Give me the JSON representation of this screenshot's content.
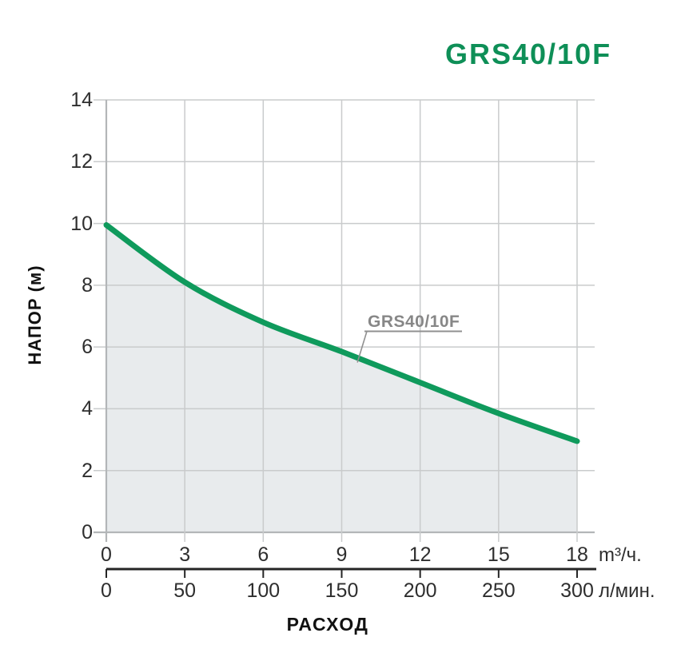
{
  "title": "GRS40/10F",
  "colors": {
    "accent": "#0e8f57",
    "curve": "#0f9a5c",
    "fill": "#e8ebed",
    "grid": "#c9cbcc",
    "axis": "#b3b6b8",
    "scale_line": "#252525",
    "tick_text": "#2e2e2e",
    "annotation_text": "#878787",
    "leader": "#909090"
  },
  "chart_data": {
    "type": "area",
    "title": "GRS40/10F",
    "ylabel": "НАПОР (м)",
    "xlabel": "РАСХОД",
    "ylim": [
      0,
      14
    ],
    "xlim": [
      0,
      18
    ],
    "grid": true,
    "legend": "none",
    "y_ticks": [
      0,
      2,
      4,
      6,
      8,
      10,
      12,
      14
    ],
    "x_axis_primary": {
      "ticks": [
        0,
        3,
        6,
        9,
        12,
        15,
        18
      ],
      "max": 18,
      "unit": "m³/ч."
    },
    "x_axis_secondary": {
      "ticks": [
        0,
        50,
        100,
        150,
        200,
        250,
        300
      ],
      "max": 300,
      "unit": "л/мин."
    },
    "series": [
      {
        "name": "GRS40/10F",
        "x": [
          0,
          3,
          6,
          9,
          12,
          15,
          18
        ],
        "y": [
          9.95,
          8.1,
          6.8,
          5.85,
          4.85,
          3.85,
          2.95
        ]
      }
    ],
    "annotation": {
      "label": "GRS40/10F",
      "attach_x": 9.6,
      "attach_y": 5.5
    }
  }
}
